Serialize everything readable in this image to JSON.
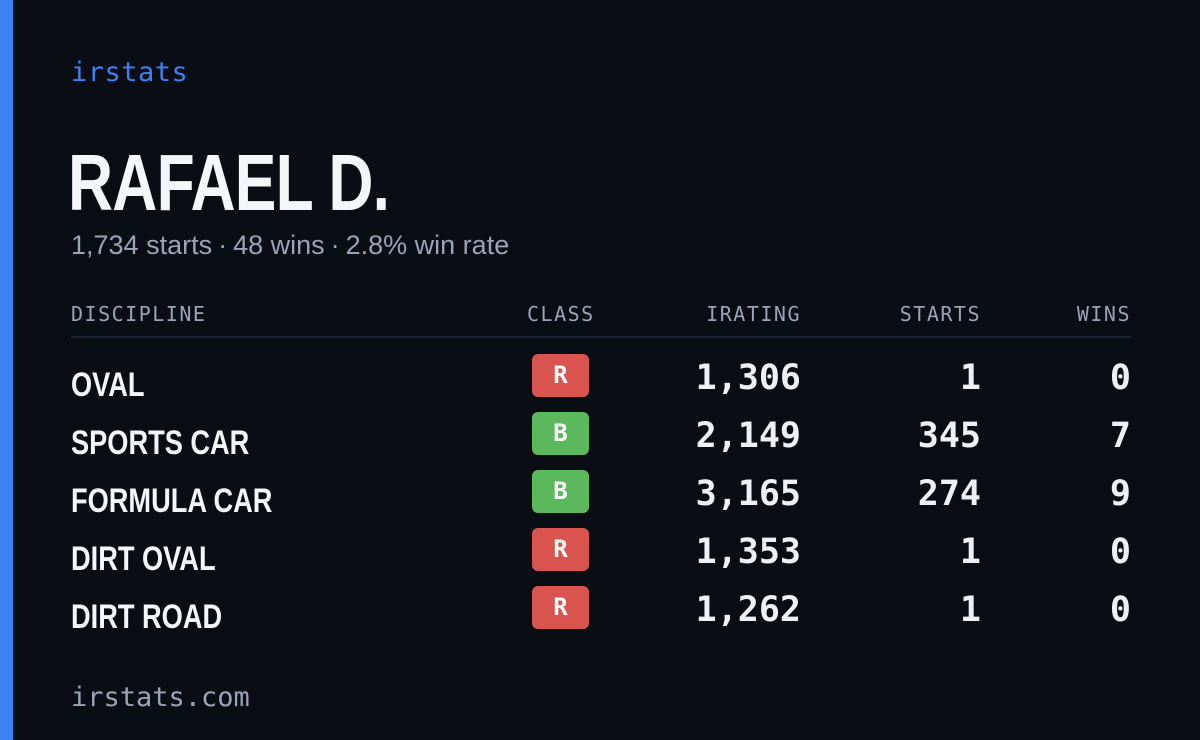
{
  "brand": "irstats",
  "driver": {
    "name": "RAFAEL D."
  },
  "summary": {
    "starts": "1,734 starts",
    "wins": "48 wins",
    "win_rate": "2.8% win rate",
    "separator": "·"
  },
  "table": {
    "headers": {
      "discipline": "DISCIPLINE",
      "class": "CLASS",
      "irating": "IRATING",
      "starts": "STARTS",
      "wins": "WINS"
    },
    "rows": [
      {
        "discipline": "OVAL",
        "class": "R",
        "irating": "1,306",
        "starts": "1",
        "wins": "0"
      },
      {
        "discipline": "SPORTS CAR",
        "class": "B",
        "irating": "2,149",
        "starts": "345",
        "wins": "7"
      },
      {
        "discipline": "FORMULA CAR",
        "class": "B",
        "irating": "3,165",
        "starts": "274",
        "wins": "9"
      },
      {
        "discipline": "DIRT OVAL",
        "class": "R",
        "irating": "1,353",
        "starts": "1",
        "wins": "0"
      },
      {
        "discipline": "DIRT ROAD",
        "class": "R",
        "irating": "1,262",
        "starts": "1",
        "wins": "0"
      }
    ]
  },
  "footer": "irstats.com",
  "colors": {
    "background": "#0b0d14",
    "accent": "#3b82f6",
    "class_r": "#d9534f",
    "class_b": "#5cb85c"
  }
}
